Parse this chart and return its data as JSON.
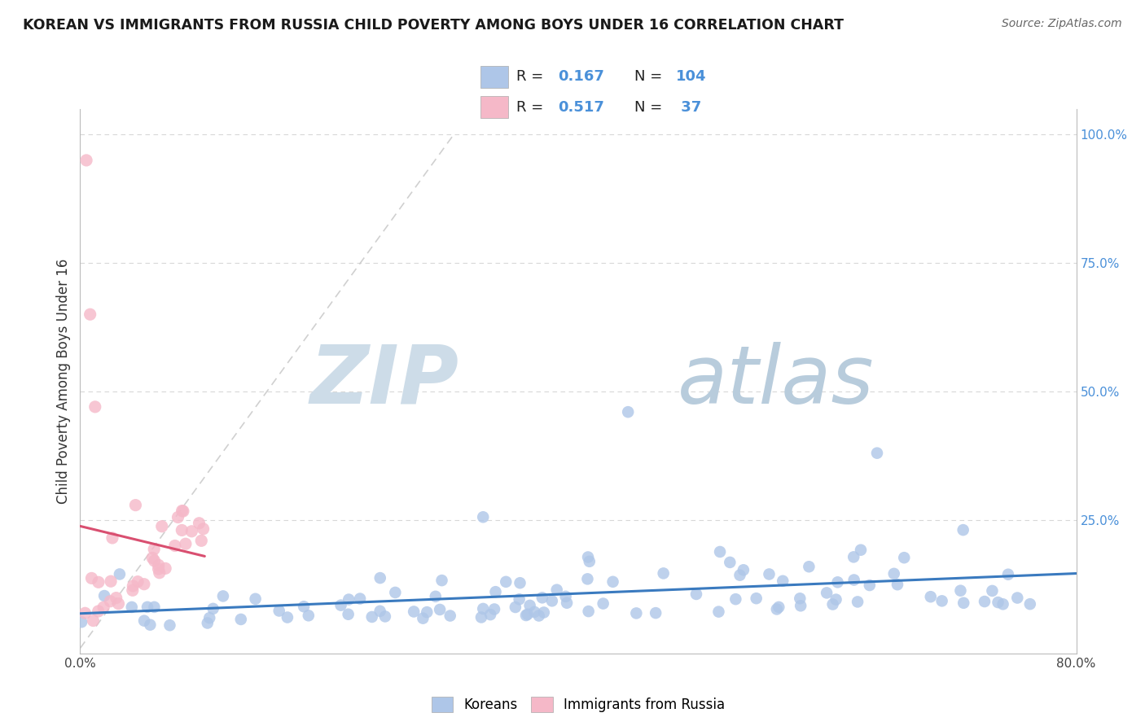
{
  "title": "KOREAN VS IMMIGRANTS FROM RUSSIA CHILD POVERTY AMONG BOYS UNDER 16 CORRELATION CHART",
  "source": "Source: ZipAtlas.com",
  "ylabel": "Child Poverty Among Boys Under 16",
  "xlim": [
    0.0,
    0.8
  ],
  "ylim": [
    -0.01,
    1.05
  ],
  "korean_R": 0.167,
  "korean_N": 104,
  "russia_R": 0.517,
  "russia_N": 37,
  "korean_color": "#aec6e8",
  "russia_color": "#f5b8c8",
  "korean_line_color": "#3a7abf",
  "russia_line_color": "#d94f70",
  "diag_color": "#c8c8c8",
  "grid_color": "#d8d8d8",
  "watermark_zip_color": "#c8d8e8",
  "watermark_atlas_color": "#b8c8d8",
  "right_tick_color": "#4a90d9",
  "legend_korean_label": "Koreans",
  "legend_russia_label": "Immigrants from Russia"
}
